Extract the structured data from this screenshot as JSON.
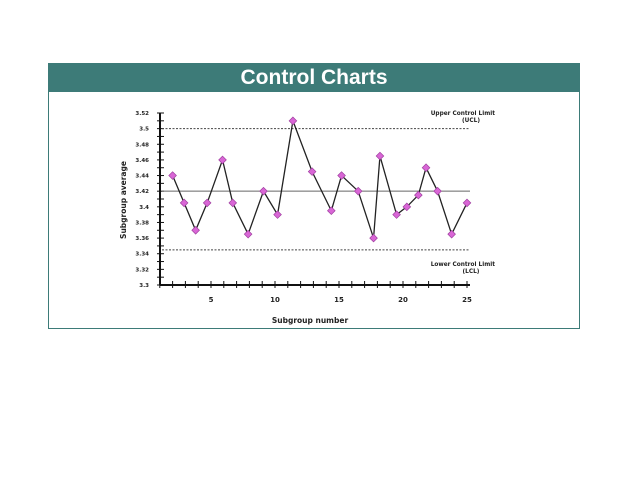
{
  "chart_data": {
    "type": "line",
    "title": "Control Charts",
    "xlabel": "Subgroup number",
    "ylabel": "Subgroup average",
    "xlim": [
      0,
      25
    ],
    "ylim": [
      3.3,
      3.52
    ],
    "x_ticks": [
      5,
      10,
      15,
      20,
      25
    ],
    "y_ticks": [
      3.3,
      3.32,
      3.34,
      3.36,
      3.38,
      3.4,
      3.42,
      3.44,
      3.46,
      3.48,
      3.5,
      3.52
    ],
    "grid": false,
    "series": [
      {
        "x": [
          2.0,
          2.9,
          3.8,
          4.7,
          5.9,
          6.7,
          7.9,
          9.1,
          10.2,
          11.4,
          12.9,
          14.4,
          15.2,
          16.5,
          17.7,
          18.2,
          19.5,
          20.3,
          21.2,
          21.8,
          22.7,
          23.8,
          25.0
        ],
        "y": [
          3.44,
          3.405,
          3.37,
          3.405,
          3.46,
          3.405,
          3.365,
          3.42,
          3.39,
          3.51,
          3.445,
          3.395,
          3.44,
          3.42,
          3.36,
          3.465,
          3.39,
          3.4,
          3.415,
          3.45,
          3.42,
          3.365,
          3.405
        ],
        "color": "#222222",
        "marker_color": "#d966d6"
      }
    ],
    "reference_lines": [
      {
        "label": "Upper Control Limit",
        "sublabel": "(UCL)",
        "value": 3.5,
        "style": "dotted"
      },
      {
        "label": "",
        "value": 3.42,
        "style": "solid"
      },
      {
        "label": "Lower Control Limit",
        "sublabel": "(LCL)",
        "value": 3.345,
        "style": "dotted"
      }
    ]
  },
  "colors": {
    "header": "#3d7b78"
  }
}
